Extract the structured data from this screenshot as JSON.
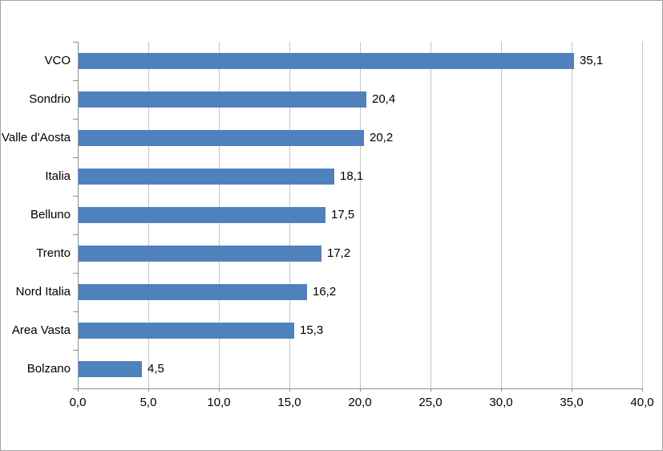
{
  "window": {
    "background": "#ffffff",
    "border_color": "#a3a3a3"
  },
  "chart_data": {
    "type": "bar",
    "orientation": "horizontal",
    "title": "",
    "xlabel": "",
    "ylabel": "",
    "categories": [
      "VCO",
      "Sondrio",
      "Valle d'Aosta",
      "Italia",
      "Belluno",
      "Trento",
      "Nord Italia",
      "Area Vasta",
      "Bolzano"
    ],
    "values": [
      35.1,
      20.4,
      20.2,
      18.1,
      17.5,
      17.2,
      16.2,
      15.3,
      4.5
    ],
    "value_labels": [
      "35,1",
      "20,4",
      "20,2",
      "18,1",
      "17,5",
      "17,2",
      "16,2",
      "15,3",
      "4,5"
    ],
    "x_ticks": [
      0,
      5,
      10,
      15,
      20,
      25,
      30,
      35,
      40
    ],
    "x_tick_labels": [
      "0,0",
      "5,0",
      "10,0",
      "15,0",
      "20,0",
      "25,0",
      "30,0",
      "35,0",
      "40,0"
    ],
    "xlim": [
      0,
      40
    ],
    "grid": true,
    "legend": false,
    "colors": {
      "bar": "#4f81bd",
      "gridline": "#c6c6c6",
      "axis": "#8f8f8f",
      "text": "#000000"
    }
  }
}
